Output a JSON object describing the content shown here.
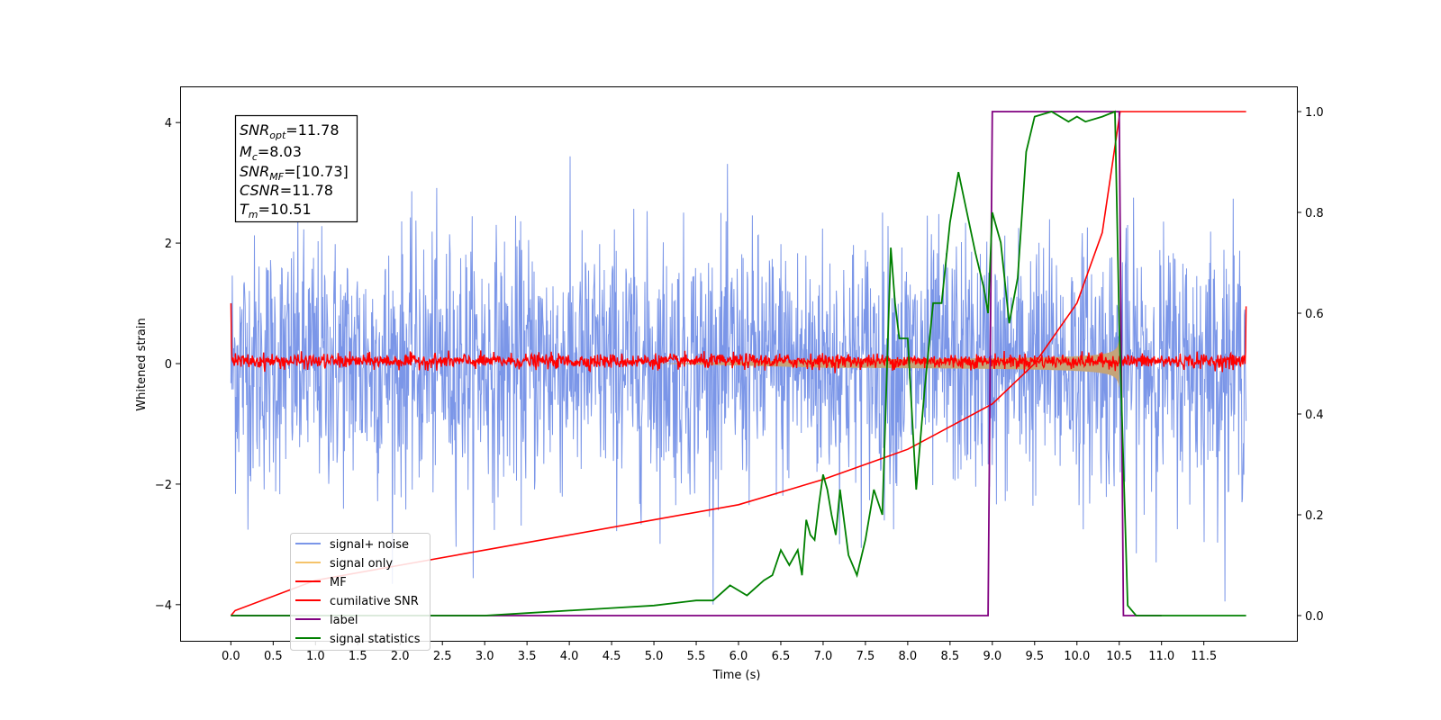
{
  "chart_data": {
    "type": "line",
    "xlabel": "Time (s)",
    "ylabel": "Whitened strain",
    "xlim": [
      -0.6,
      12.6
    ],
    "ylim": [
      -4.6,
      4.6
    ],
    "y2lim": [
      -0.05,
      1.05
    ],
    "x_ticks": [
      "0.0",
      "0.5",
      "1.0",
      "1.5",
      "2.0",
      "2.5",
      "3.0",
      "3.5",
      "4.0",
      "4.5",
      "5.0",
      "5.5",
      "6.0",
      "6.5",
      "7.0",
      "7.5",
      "8.0",
      "8.5",
      "9.0",
      "9.5",
      "10.0",
      "10.5",
      "11.0",
      "11.5"
    ],
    "y_ticks": [
      "−4",
      "−2",
      "0",
      "2",
      "4"
    ],
    "y2_ticks": [
      "0.0",
      "0.2",
      "0.4",
      "0.6",
      "0.8",
      "1.0"
    ],
    "annotation": {
      "snr_opt": {
        "base": "SNR",
        "sub": "opt",
        "value": "=11.78"
      },
      "mc": {
        "base": "M",
        "sub": "c",
        "value": "=8.03"
      },
      "snr_mf": {
        "base": "SNR",
        "sub": "MF",
        "value": "=[10.73]"
      },
      "csnr": {
        "base": "CSNR",
        "sub": "",
        "value": "=11.78"
      },
      "tm": {
        "base": "T",
        "sub": "m",
        "value": "=10.51"
      }
    },
    "legend_position": "lower-left",
    "series": [
      {
        "name": "signal+ noise",
        "color": "#7b96e8",
        "axis": "left",
        "x_range": [
          0,
          12
        ],
        "noise_sigma": 1.0,
        "approx_range": [
          -4,
          4
        ]
      },
      {
        "name": "signal only",
        "color": "#f5c36b",
        "axis": "left",
        "merger_time": 10.51,
        "peak_amplitude": 1.0
      },
      {
        "name": "MF",
        "color": "#ff0000",
        "axis": "left",
        "x_range": [
          0,
          12
        ],
        "approx_range": [
          -0.15,
          0.25
        ],
        "start_value": 1.0,
        "end_value": 0.95
      },
      {
        "name": "cumilative SNR",
        "color": "#ff0000",
        "axis": "right",
        "x": [
          0.0,
          0.05,
          1.0,
          2.0,
          3.0,
          4.0,
          5.0,
          6.0,
          7.0,
          8.0,
          9.0,
          9.5,
          10.0,
          10.3,
          10.51,
          12.0
        ],
        "values": [
          0.0,
          0.01,
          0.07,
          0.1,
          0.13,
          0.16,
          0.19,
          0.22,
          0.27,
          0.33,
          0.42,
          0.5,
          0.62,
          0.76,
          1.0,
          1.0
        ]
      },
      {
        "name": "label",
        "color": "#800080",
        "axis": "right",
        "x": [
          0.0,
          8.95,
          9.0,
          10.5,
          10.55,
          11.0
        ],
        "values": [
          0.0,
          0.0,
          1.0,
          1.0,
          0.0,
          0.0
        ]
      },
      {
        "name": "signal statistics",
        "color": "#008000",
        "axis": "right",
        "x": [
          0.0,
          1.0,
          2.0,
          2.5,
          3.0,
          3.5,
          4.0,
          4.5,
          5.0,
          5.5,
          5.7,
          5.9,
          6.1,
          6.3,
          6.4,
          6.5,
          6.6,
          6.7,
          6.75,
          6.8,
          6.85,
          6.9,
          6.95,
          7.0,
          7.05,
          7.1,
          7.15,
          7.2,
          7.3,
          7.4,
          7.5,
          7.6,
          7.7,
          7.8,
          7.85,
          7.9,
          8.0,
          8.1,
          8.2,
          8.3,
          8.4,
          8.5,
          8.6,
          8.7,
          8.8,
          8.9,
          8.95,
          9.0,
          9.1,
          9.2,
          9.3,
          9.4,
          9.5,
          9.7,
          9.9,
          10.0,
          10.1,
          10.3,
          10.45,
          10.5,
          10.6,
          10.7,
          11.0,
          12.0
        ],
        "values": [
          0.0,
          0.0,
          0.0,
          0.0,
          0.0,
          0.005,
          0.01,
          0.015,
          0.02,
          0.03,
          0.03,
          0.06,
          0.04,
          0.07,
          0.08,
          0.13,
          0.1,
          0.13,
          0.08,
          0.19,
          0.16,
          0.15,
          0.22,
          0.28,
          0.25,
          0.2,
          0.16,
          0.25,
          0.12,
          0.08,
          0.15,
          0.25,
          0.2,
          0.73,
          0.62,
          0.55,
          0.55,
          0.25,
          0.45,
          0.62,
          0.62,
          0.78,
          0.88,
          0.8,
          0.72,
          0.65,
          0.6,
          0.8,
          0.74,
          0.58,
          0.67,
          0.92,
          0.99,
          1.0,
          0.98,
          0.99,
          0.98,
          0.99,
          1.0,
          0.58,
          0.02,
          0.0,
          0.0,
          0.0
        ]
      }
    ]
  }
}
